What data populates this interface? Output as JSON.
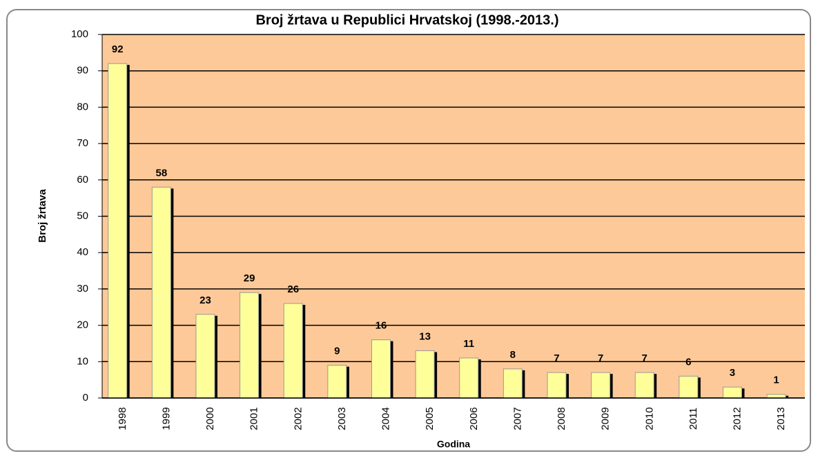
{
  "chart_data": {
    "type": "bar",
    "title": "Broj žrtava u Republici Hrvatskoj (1998.-2013.)",
    "x_label": "Godina",
    "y_label": "Broj žrtava",
    "categories": [
      "1998",
      "1999",
      "2000",
      "2001",
      "2002",
      "2003",
      "2004",
      "2005",
      "2006",
      "2007",
      "2008",
      "2009",
      "2010",
      "2011",
      "2012",
      "2013"
    ],
    "values": [
      92,
      58,
      23,
      29,
      26,
      9,
      16,
      13,
      11,
      8,
      7,
      7,
      7,
      6,
      3,
      1
    ],
    "color": "#ffff99",
    "shadow_color": "#000000",
    "plot_background": "#fdc998",
    "ylim": [
      0,
      100
    ],
    "yticks": [
      0,
      10,
      20,
      30,
      40,
      50,
      60,
      70,
      80,
      90,
      100
    ],
    "grid": true
  }
}
